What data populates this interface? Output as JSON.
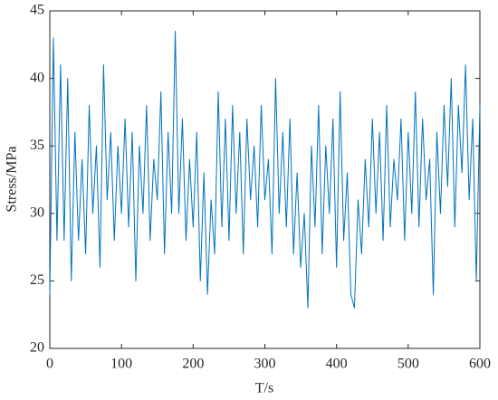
{
  "chart_data": {
    "type": "line",
    "xlabel": "T/s",
    "ylabel": "Stress/MPa",
    "x": [
      0,
      5,
      10,
      15,
      20,
      25,
      30,
      35,
      40,
      45,
      50,
      55,
      60,
      65,
      70,
      75,
      80,
      85,
      90,
      95,
      100,
      105,
      110,
      115,
      120,
      125,
      130,
      135,
      140,
      145,
      150,
      155,
      160,
      165,
      170,
      175,
      180,
      185,
      190,
      195,
      200,
      205,
      210,
      215,
      220,
      225,
      230,
      235,
      240,
      245,
      250,
      255,
      260,
      265,
      270,
      275,
      280,
      285,
      290,
      295,
      300,
      305,
      310,
      315,
      320,
      325,
      330,
      335,
      340,
      345,
      350,
      355,
      360,
      365,
      370,
      375,
      380,
      385,
      390,
      395,
      400,
      405,
      410,
      415,
      420,
      425,
      430,
      435,
      440,
      445,
      450,
      455,
      460,
      465,
      470,
      475,
      480,
      485,
      490,
      495,
      500,
      505,
      510,
      515,
      520,
      525,
      530,
      535,
      540,
      545,
      550,
      555,
      560,
      565,
      570,
      575,
      580,
      585,
      590,
      595,
      600
    ],
    "series": [
      {
        "name": "Stress",
        "color": "#0072bd",
        "values": [
          24,
          43,
          28,
          41,
          28,
          40,
          25,
          36,
          28,
          34,
          27,
          38,
          30,
          35,
          26,
          41,
          31,
          36,
          28,
          35,
          30,
          37,
          29,
          36,
          25,
          35,
          30,
          38,
          28,
          34,
          31,
          39,
          27,
          36,
          30,
          43.5,
          30,
          37,
          28,
          34,
          29,
          36,
          25,
          33,
          24,
          31,
          27,
          39,
          29,
          37,
          28,
          38,
          30,
          36,
          27,
          37,
          31,
          35,
          29,
          38,
          31,
          34,
          27,
          40,
          30,
          36,
          29,
          37,
          27,
          33,
          26,
          30,
          23,
          35,
          29,
          38,
          27,
          35,
          30,
          37,
          26,
          39,
          28,
          33,
          24,
          23,
          31,
          27,
          34,
          29,
          37,
          30,
          36,
          28,
          38,
          29,
          34,
          31,
          37,
          28,
          36,
          30,
          39,
          29,
          37,
          31,
          34,
          24,
          36,
          30,
          38,
          32,
          40,
          29,
          38,
          33,
          41,
          31,
          37,
          25,
          38
        ]
      }
    ],
    "xlim": [
      0,
      600
    ],
    "xticks": [
      0,
      100,
      200,
      300,
      400,
      500,
      600
    ],
    "ylim": [
      20,
      45
    ],
    "yticks": [
      20,
      25,
      30,
      35,
      40,
      45
    ]
  }
}
